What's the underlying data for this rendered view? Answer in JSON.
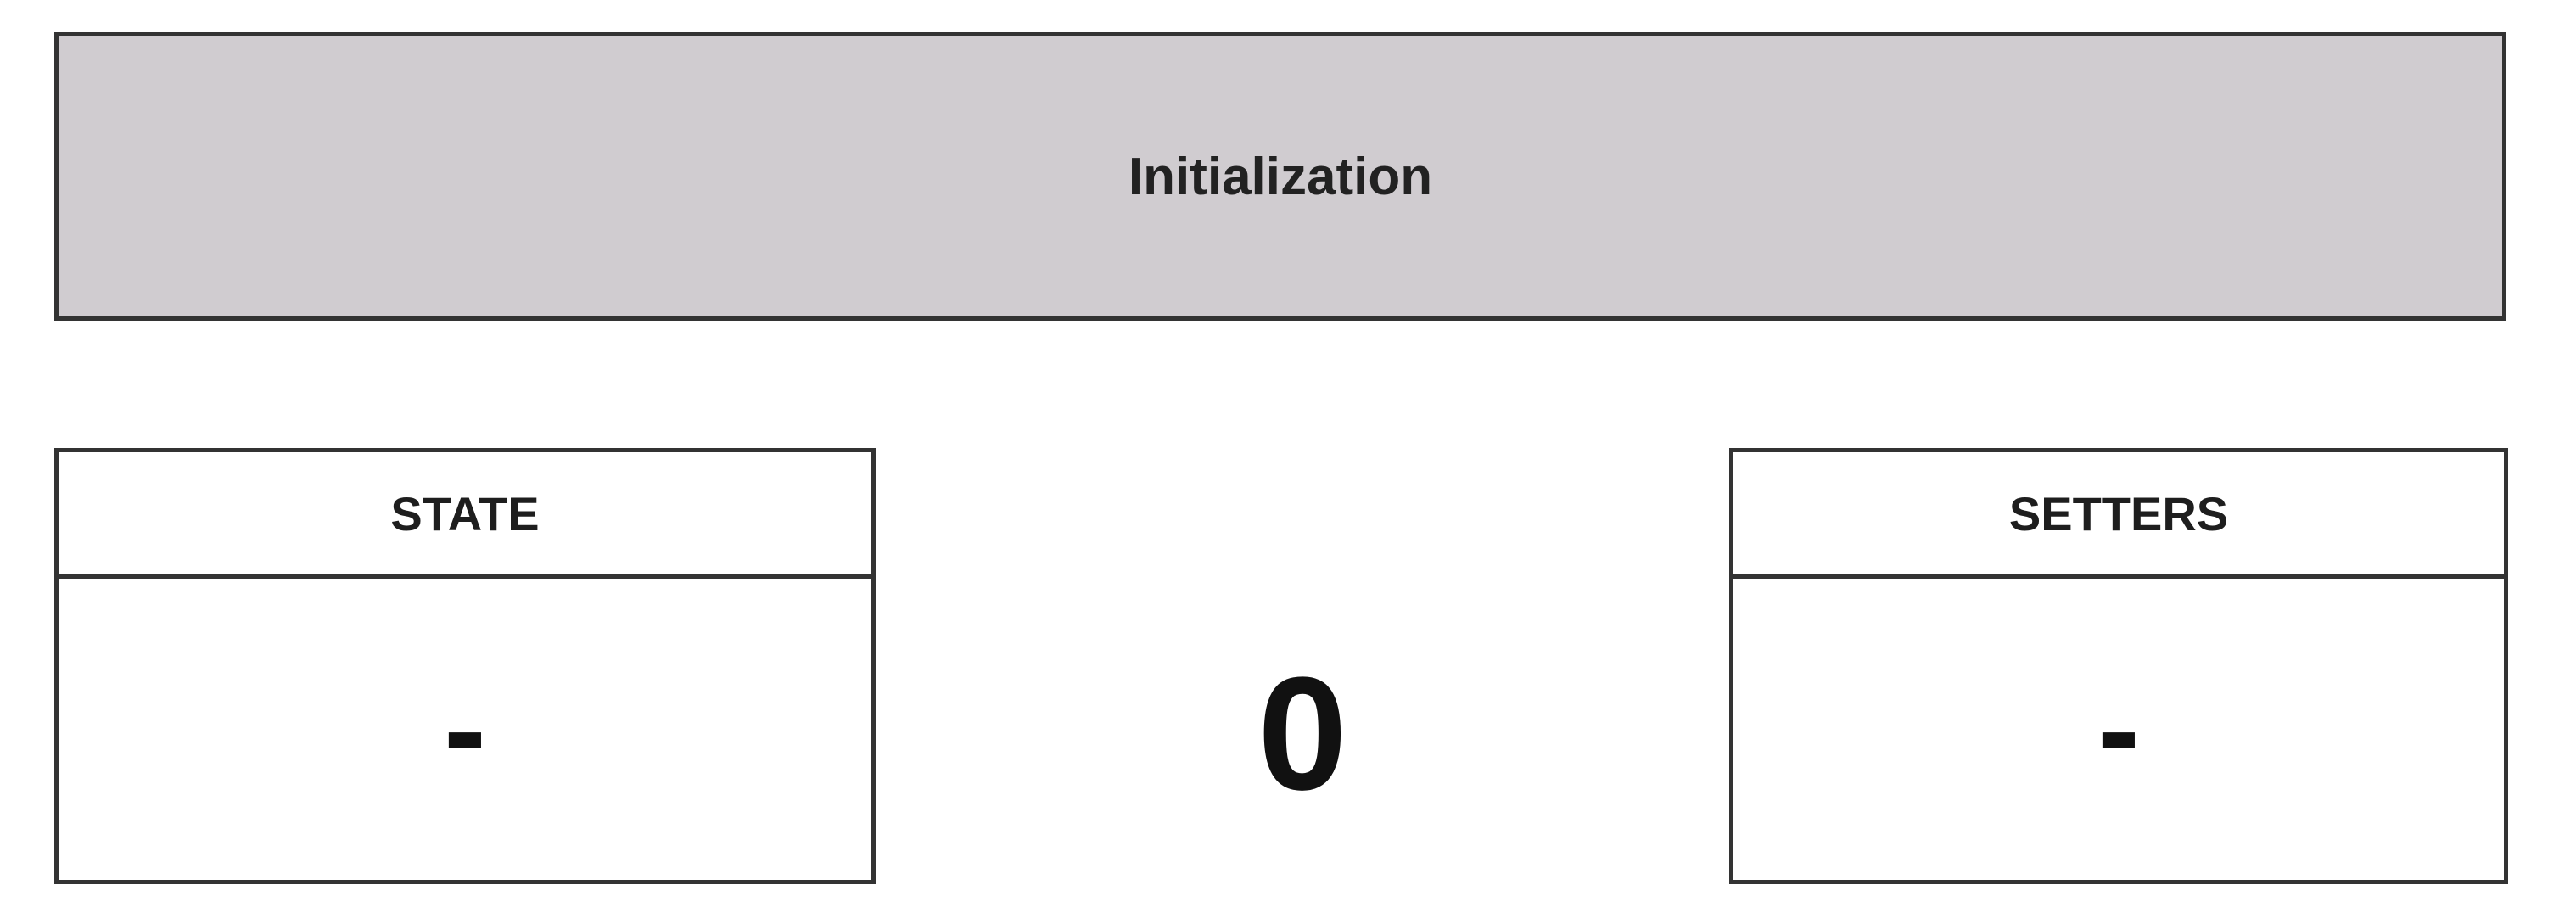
{
  "colors": {
    "banner_fill": "#d0ccd0",
    "border": "#333333",
    "background": "#ffffff"
  },
  "banner": {
    "title": "Initialization"
  },
  "state_panel": {
    "header": "STATE",
    "value": "-"
  },
  "center": {
    "value": "0"
  },
  "setters_panel": {
    "header": "SETTERS",
    "value": "-"
  }
}
